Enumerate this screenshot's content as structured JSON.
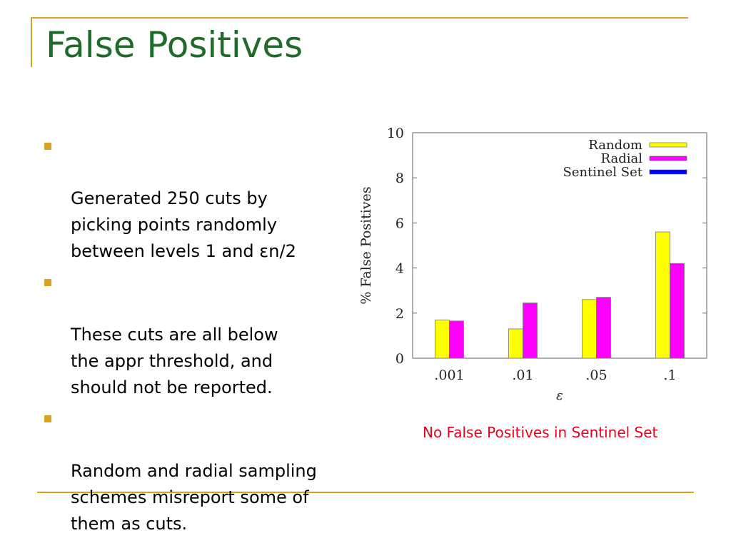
{
  "slide": {
    "title": "False Positives",
    "bullets": [
      "Generated 250 cuts by\npicking points randomly\nbetween levels 1 and εn/2",
      "These cuts are all below\nthe appr threshold, and\nshould not be reported.",
      "Random and radial sampling\nschemes misreport some of\nthem as cuts."
    ],
    "note": "No False Positives in Sentinel Set"
  },
  "colors": {
    "frame": "#d9a21f",
    "title": "#1f6b2a",
    "note": "#e8001c"
  },
  "chart_data": {
    "type": "bar",
    "title": "",
    "xlabel": "ε",
    "ylabel": "% False Positives",
    "categories": [
      ".001",
      ".01",
      ".05",
      ".1"
    ],
    "ylim": [
      0,
      10
    ],
    "yticks": [
      0,
      2,
      4,
      6,
      8,
      10
    ],
    "grid": false,
    "legend_position": "top-right",
    "series": [
      {
        "name": "Random",
        "color": "#ffff00",
        "values": [
          1.7,
          1.3,
          2.6,
          5.6
        ]
      },
      {
        "name": "Radial",
        "color": "#ff00ff",
        "values": [
          1.65,
          2.45,
          2.7,
          4.2
        ]
      },
      {
        "name": "Sentinel Set",
        "color": "#0000ff",
        "values": [
          0,
          0,
          0,
          0
        ]
      }
    ]
  }
}
